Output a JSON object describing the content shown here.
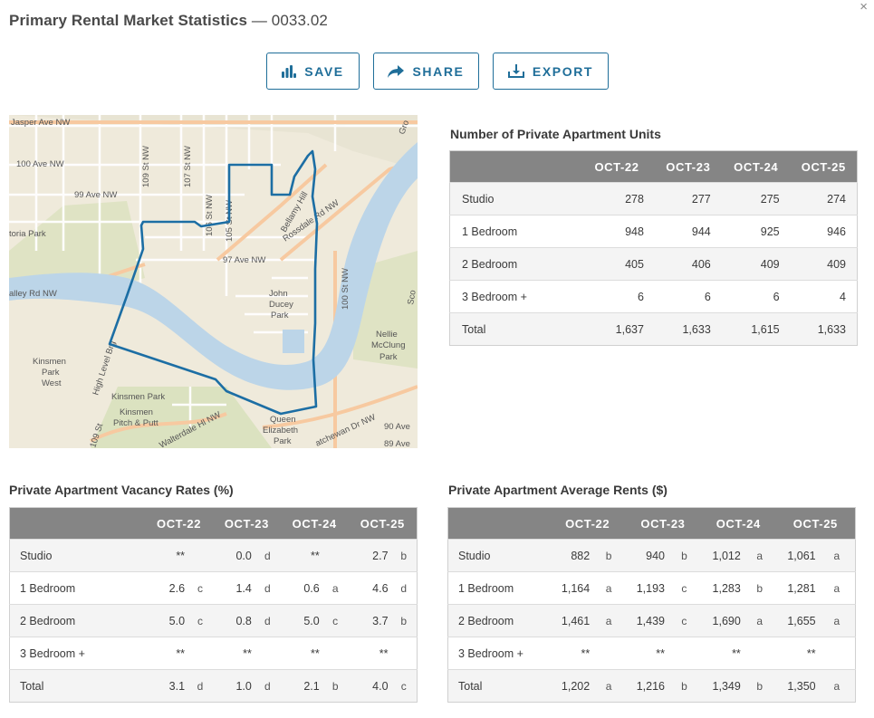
{
  "header": {
    "title": "Primary Rental Market Statistics",
    "separator": "—",
    "code": "0033.02"
  },
  "close_label": "×",
  "toolbar": {
    "save_label": "SAVE",
    "share_label": "SHARE",
    "export_label": "EXPORT"
  },
  "map": {
    "labels": {
      "jasper": "Jasper Ave NW",
      "ave100": "100 Ave NW",
      "ave99": "99 Ave NW",
      "victoria": "toria Park",
      "ave97": "97 Ave NW",
      "valley": "alley Rd NW",
      "st109": "109 St NW",
      "st107": "107 St NW",
      "st106": "106 St NW",
      "st105": "105 St NW",
      "bellamy": "Bellamy Hill",
      "rossdale": "Rossdale Rd NW",
      "st100": "100 St NW",
      "ducey1": "John",
      "ducey2": "Ducey",
      "ducey3": "Park",
      "nellie1": "Nellie",
      "nellie2": "McClung",
      "nellie3": "Park",
      "kins1": "Kinsmen",
      "kins2": "Park",
      "kins3": "West",
      "kinsmenpark": "Kinsmen Park",
      "pitch1": "Kinsmen",
      "pitch2": "Pitch & Putt",
      "queen1": "Queen",
      "queen2": "Elizabeth",
      "queen3": "Park",
      "ave90": "90 Ave",
      "ave89": "89 Ave",
      "sask": "atchewan Dr NW",
      "groat": "Gro",
      "scona": "Sco",
      "highlevel": "High Level Brg",
      "walterdale": "Walterdale Hl NW",
      "st109b": "109 St"
    }
  },
  "units": {
    "title": "Number of Private Apartment Units",
    "columns": [
      "OCT-22",
      "OCT-23",
      "OCT-24",
      "OCT-25"
    ],
    "rows": [
      {
        "label": "Studio",
        "values": [
          "278",
          "277",
          "275",
          "274"
        ]
      },
      {
        "label": "1 Bedroom",
        "values": [
          "948",
          "944",
          "925",
          "946"
        ]
      },
      {
        "label": "2 Bedroom",
        "values": [
          "405",
          "406",
          "409",
          "409"
        ]
      },
      {
        "label": "3 Bedroom +",
        "values": [
          "6",
          "6",
          "6",
          "4"
        ]
      },
      {
        "label": "Total",
        "values": [
          "1,637",
          "1,633",
          "1,615",
          "1,633"
        ]
      }
    ]
  },
  "vacancy": {
    "title": "Private Apartment Vacancy Rates (%)",
    "columns": [
      "OCT-22",
      "OCT-23",
      "OCT-24",
      "OCT-25"
    ],
    "rows": [
      {
        "label": "Studio",
        "cells": [
          [
            "**",
            ""
          ],
          [
            "0.0",
            "d"
          ],
          [
            "**",
            ""
          ],
          [
            "2.7",
            "b"
          ]
        ]
      },
      {
        "label": "1 Bedroom",
        "cells": [
          [
            "2.6",
            "c"
          ],
          [
            "1.4",
            "d"
          ],
          [
            "0.6",
            "a"
          ],
          [
            "4.6",
            "d"
          ]
        ]
      },
      {
        "label": "2 Bedroom",
        "cells": [
          [
            "5.0",
            "c"
          ],
          [
            "0.8",
            "d"
          ],
          [
            "5.0",
            "c"
          ],
          [
            "3.7",
            "b"
          ]
        ]
      },
      {
        "label": "3 Bedroom +",
        "cells": [
          [
            "**",
            ""
          ],
          [
            "**",
            ""
          ],
          [
            "**",
            ""
          ],
          [
            "**",
            ""
          ]
        ]
      },
      {
        "label": "Total",
        "cells": [
          [
            "3.1",
            "d"
          ],
          [
            "1.0",
            "d"
          ],
          [
            "2.1",
            "b"
          ],
          [
            "4.0",
            "c"
          ]
        ]
      }
    ]
  },
  "rents": {
    "title": "Private Apartment Average Rents ($)",
    "columns": [
      "OCT-22",
      "OCT-23",
      "OCT-24",
      "OCT-25"
    ],
    "rows": [
      {
        "label": "Studio",
        "cells": [
          [
            "882",
            "b"
          ],
          [
            "940",
            "b"
          ],
          [
            "1,012",
            "a"
          ],
          [
            "1,061",
            "a"
          ]
        ]
      },
      {
        "label": "1 Bedroom",
        "cells": [
          [
            "1,164",
            "a"
          ],
          [
            "1,193",
            "c"
          ],
          [
            "1,283",
            "b"
          ],
          [
            "1,281",
            "a"
          ]
        ]
      },
      {
        "label": "2 Bedroom",
        "cells": [
          [
            "1,461",
            "a"
          ],
          [
            "1,439",
            "c"
          ],
          [
            "1,690",
            "a"
          ],
          [
            "1,655",
            "a"
          ]
        ]
      },
      {
        "label": "3 Bedroom +",
        "cells": [
          [
            "**",
            ""
          ],
          [
            "**",
            ""
          ],
          [
            "**",
            ""
          ],
          [
            "**",
            ""
          ]
        ]
      },
      {
        "label": "Total",
        "cells": [
          [
            "1,202",
            "a"
          ],
          [
            "1,216",
            "b"
          ],
          [
            "1,349",
            "b"
          ],
          [
            "1,350",
            "a"
          ]
        ]
      }
    ]
  }
}
